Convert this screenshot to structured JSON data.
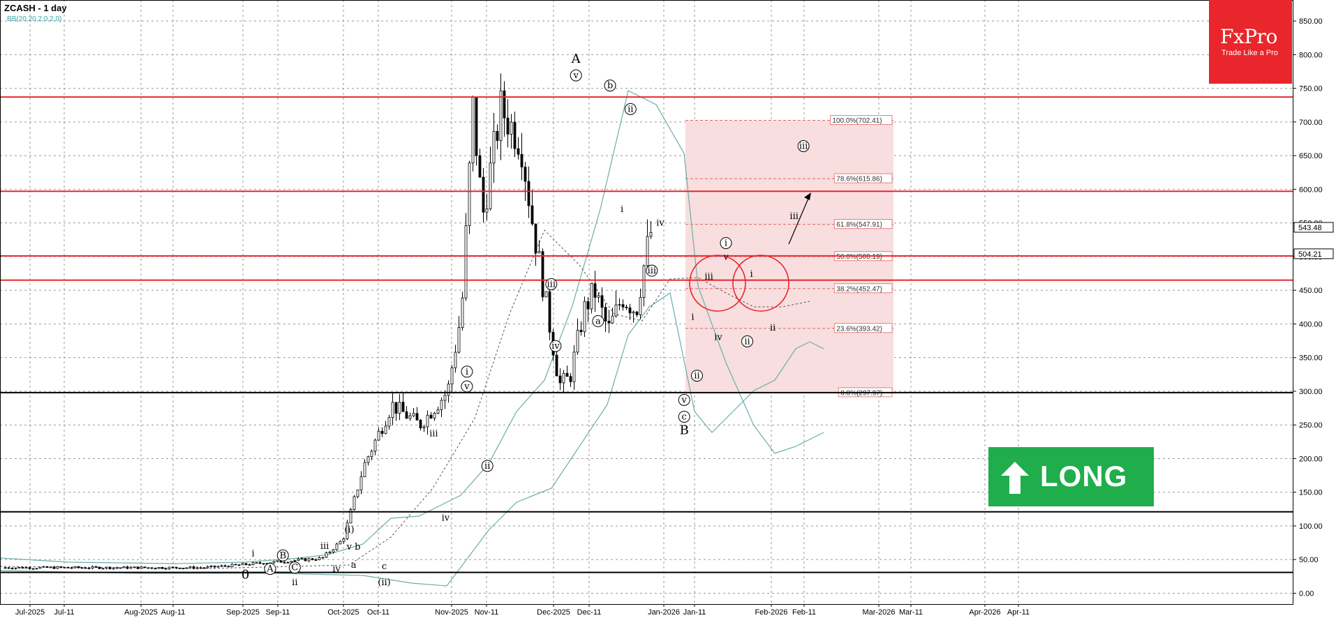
{
  "header": {
    "symbol_timeframe": "ZCASH - 1 day",
    "indicator": "BB(20,20,2,0,2,0)"
  },
  "logo": {
    "brand": "FxPro",
    "tagline": "Trade Like a Pro"
  },
  "signal": {
    "label": "LONG",
    "direction": "up",
    "color": "#1fae4b"
  },
  "colors": {
    "resistance": "#e8262b",
    "support": "#000000",
    "bollinger": "#6aaeaa",
    "fib_zone": "#f8dede",
    "fib_line": "#d66",
    "price_tag_bg": "#ffffff"
  },
  "chart_data": {
    "type": "candlestick",
    "y_range": [
      -10,
      880
    ],
    "x_ticks": [
      "Jul-2025",
      "Jul-11",
      "Aug-2025",
      "Aug-11",
      "Sep-2025",
      "Sep-11",
      "Oct-2025",
      "Oct-11",
      "Nov-2025",
      "Nov-11",
      "Dec-2025",
      "Dec-11",
      "Jan-2026",
      "Jan-11",
      "Feb-2026",
      "Feb-11",
      "Mar-2026",
      "Mar-11",
      "Apr-2026",
      "Apr-11"
    ],
    "y_ticks": [
      0,
      50,
      100,
      150,
      200,
      250,
      300,
      350,
      400,
      450,
      500,
      550,
      600,
      650,
      700,
      750,
      800,
      850
    ],
    "y_tick_labels": [
      "0.00",
      "50.00",
      "100.00",
      "150.00",
      "200.00",
      "250.00",
      "300.00",
      "350.00",
      "400.00",
      "450.00",
      "500.00",
      "550.00",
      "600.00",
      "650.00",
      "700.00",
      "750.00",
      "800.00",
      "850.00"
    ],
    "horizontal_levels": [
      {
        "price": 737,
        "kind": "resistance"
      },
      {
        "price": 597,
        "kind": "resistance"
      },
      {
        "price": 501,
        "kind": "resistance"
      },
      {
        "price": 465,
        "kind": "resistance"
      },
      {
        "price": 298,
        "kind": "support"
      },
      {
        "price": 121,
        "kind": "support"
      },
      {
        "price": 31,
        "kind": "support"
      }
    ],
    "price_tags": [
      {
        "price": 543.48,
        "label": "543.48"
      },
      {
        "price": 504.21,
        "label": "504.21"
      }
    ],
    "fibonacci": {
      "x_start": "Dec-2025",
      "x_end": "Jan-2026",
      "levels": [
        {
          "pct": "100.0%",
          "price": 702.41,
          "label": "100.0%(702.41)"
        },
        {
          "pct": "78.6%",
          "price": 615.86,
          "label": "78.6%(615.86)"
        },
        {
          "pct": "61.8%",
          "price": 547.91,
          "label": "61.8%(547.91)"
        },
        {
          "pct": "50.0%",
          "price": 500.19,
          "label": "50.0%(500.19)"
        },
        {
          "pct": "38.2%",
          "price": 452.47,
          "label": "38.2%(452.47)"
        },
        {
          "pct": "23.6%",
          "price": 393.42,
          "label": "23.6%(393.42)"
        },
        {
          "pct": "0.0%",
          "price": 297.97,
          "label": "0.0%(297.97)"
        }
      ]
    },
    "circles": [
      {
        "x": "Dec-05",
        "price": 460
      },
      {
        "x": "Dec-19",
        "price": 460
      }
    ],
    "wave_labels": [
      {
        "text": "A",
        "x": 676,
        "price": 788,
        "big": true
      },
      {
        "text": "v",
        "x": 676,
        "price": 765,
        "circle": true
      },
      {
        "text": "b",
        "x": 716,
        "price": 750,
        "circle": true
      },
      {
        "text": "ii",
        "x": 740,
        "price": 715,
        "circle": true
      },
      {
        "text": "i",
        "x": 730,
        "price": 566
      },
      {
        "text": "iv",
        "x": 775,
        "price": 546
      },
      {
        "text": "iii",
        "x": 765,
        "price": 475,
        "circle": true
      },
      {
        "text": "iii",
        "x": 647,
        "price": 455,
        "circle": true
      },
      {
        "text": "a",
        "x": 702,
        "price": 400,
        "circle": true
      },
      {
        "text": "iv",
        "x": 652,
        "price": 363,
        "circle": true
      },
      {
        "text": "i",
        "x": 548,
        "price": 325,
        "circle": true
      },
      {
        "text": "v",
        "x": 548,
        "price": 303,
        "circle": true
      },
      {
        "text": "ii",
        "x": 572,
        "price": 185,
        "circle": true
      },
      {
        "text": "iii",
        "x": 509,
        "price": 233
      },
      {
        "text": "iv",
        "x": 523,
        "price": 108
      },
      {
        "text": "B",
        "x": 803,
        "price": 236,
        "big": true
      },
      {
        "text": "c",
        "x": 803,
        "price": 258,
        "circle": true
      },
      {
        "text": "v",
        "x": 803,
        "price": 283,
        "circle": true
      },
      {
        "text": "ii",
        "x": 818,
        "price": 319,
        "circle": true
      },
      {
        "text": "i",
        "x": 813,
        "price": 406
      },
      {
        "text": "iv",
        "x": 843,
        "price": 376
      },
      {
        "text": "iii",
        "x": 832,
        "price": 466
      },
      {
        "text": "v",
        "x": 852,
        "price": 495
      },
      {
        "text": "i",
        "x": 852,
        "price": 516,
        "circle": true
      },
      {
        "text": "ii",
        "x": 877,
        "price": 370,
        "circle": true
      },
      {
        "text": "i",
        "x": 882,
        "price": 470
      },
      {
        "text": "ii",
        "x": 907,
        "price": 390
      },
      {
        "text": "iii",
        "x": 932,
        "price": 556
      },
      {
        "text": "iii",
        "x": 943,
        "price": 660,
        "circle": true
      },
      {
        "text": "i",
        "x": 297,
        "price": 55
      },
      {
        "text": "0",
        "x": 288,
        "price": 22,
        "big": true
      },
      {
        "text": "B",
        "x": 332,
        "price": 52,
        "circle": true
      },
      {
        "text": "A",
        "x": 317,
        "price": 32,
        "circle": true
      },
      {
        "text": "C",
        "x": 346,
        "price": 34,
        "circle": true
      },
      {
        "text": "ii",
        "x": 346,
        "price": 12
      },
      {
        "text": "iii",
        "x": 381,
        "price": 66
      },
      {
        "text": "iv",
        "x": 395,
        "price": 32
      },
      {
        "text": "(i)",
        "x": 410,
        "price": 90
      },
      {
        "text": "v b",
        "x": 415,
        "price": 65
      },
      {
        "text": "a",
        "x": 415,
        "price": 38
      },
      {
        "text": "c",
        "x": 451,
        "price": 36
      },
      {
        "text": "(ii)",
        "x": 451,
        "price": 12
      }
    ]
  }
}
